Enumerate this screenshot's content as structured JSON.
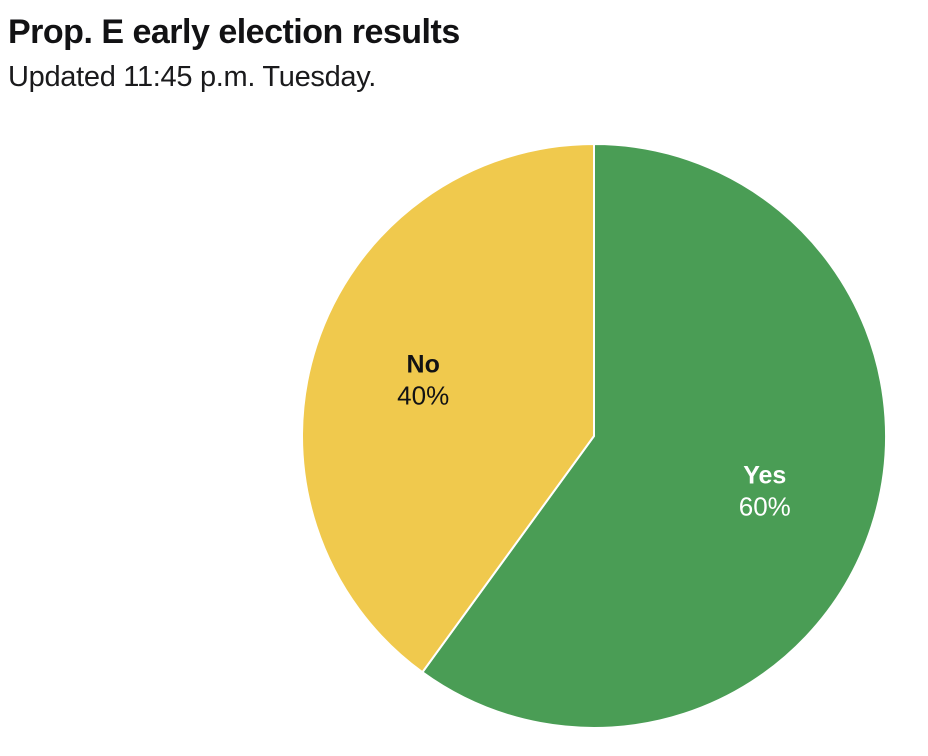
{
  "chart_data": {
    "type": "pie",
    "title": "Prop. E early election results",
    "subtitle": "Updated 11:45 p.m. Tuesday.",
    "categories": [
      "Yes",
      "No"
    ],
    "values": [
      60,
      40
    ],
    "slices": [
      {
        "label": "Yes",
        "value": 60,
        "display_value": "60%",
        "color": "#4a9d55",
        "label_color": "#ffffff"
      },
      {
        "label": "No",
        "value": 40,
        "display_value": "40%",
        "color": "#f0c94d",
        "label_color": "#121214"
      }
    ],
    "start_angle_deg": 0,
    "direction": "clockwise",
    "separator_color": "#ffffff",
    "legend_position": "none",
    "labels_inside": true
  }
}
